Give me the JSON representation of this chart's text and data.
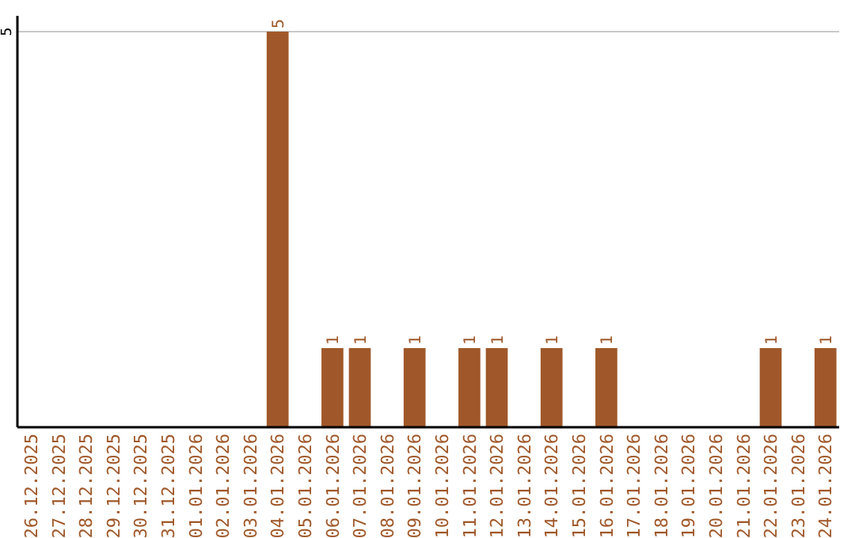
{
  "chart_data": {
    "type": "bar",
    "categories": [
      "26.12.2025",
      "27.12.2025",
      "28.12.2025",
      "29.12.2025",
      "30.12.2025",
      "31.12.2025",
      "01.01.2026",
      "02.01.2026",
      "03.01.2026",
      "04.01.2026",
      "05.01.2026",
      "06.01.2026",
      "07.01.2026",
      "08.01.2026",
      "09.01.2026",
      "10.01.2026",
      "11.01.2026",
      "12.01.2026",
      "13.01.2026",
      "14.01.2026",
      "15.01.2026",
      "16.01.2026",
      "17.01.2026",
      "18.01.2026",
      "19.01.2026",
      "20.01.2026",
      "21.01.2026",
      "22.01.2026",
      "23.01.2026",
      "24.01.2026"
    ],
    "values": [
      0,
      0,
      0,
      0,
      0,
      0,
      0,
      0,
      0,
      5,
      0,
      1,
      1,
      0,
      1,
      0,
      1,
      1,
      0,
      1,
      0,
      1,
      0,
      0,
      0,
      0,
      0,
      1,
      0,
      1
    ],
    "value_labels": [
      null,
      null,
      null,
      null,
      null,
      null,
      null,
      null,
      null,
      "5",
      null,
      "1",
      "1",
      null,
      "1",
      null,
      "1",
      "1",
      null,
      "1",
      null,
      "1",
      null,
      null,
      null,
      null,
      null,
      "1",
      null,
      "1"
    ],
    "color": "#a0582a",
    "ylim": [
      0,
      5.2
    ],
    "yticks": [
      5
    ],
    "grid": "y"
  }
}
